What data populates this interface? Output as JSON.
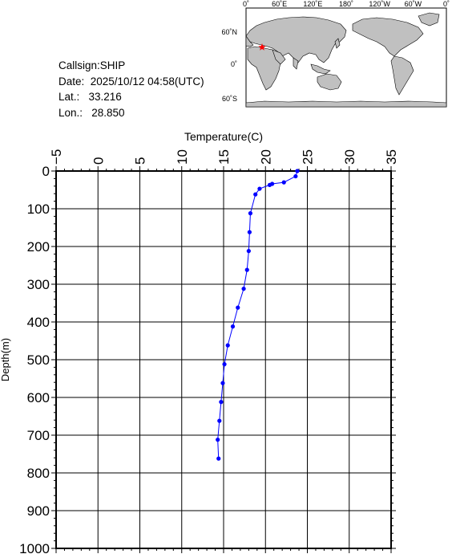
{
  "info": {
    "callsign": "Callsign:SHIP",
    "date": "Date:  2025/10/12 04:58(UTC)",
    "lat": "Lat.:   33.216",
    "lon": "Lon.:   28.850"
  },
  "map": {
    "lon_labels": [
      "0˚",
      "60˚E",
      "120˚E",
      "180˚",
      "120˚W",
      "60˚W",
      "0˚"
    ],
    "lat_labels": [
      "60˚N",
      "0˚",
      "60˚S"
    ],
    "marker_color": "#ff0000",
    "ocean_color": "#ffffff",
    "land_color": "#c0c0c0"
  },
  "chart_data": {
    "type": "line",
    "title": "",
    "xlabel": "Temperature(C)",
    "ylabel": "Depth(m)",
    "x_axis_position": "top",
    "y_inverted": true,
    "xlim": [
      -5,
      35
    ],
    "ylim": [
      0,
      1000
    ],
    "x_ticks": [
      -5,
      0,
      5,
      10,
      15,
      20,
      25,
      30,
      35
    ],
    "y_ticks": [
      0,
      100,
      200,
      300,
      400,
      500,
      600,
      700,
      800,
      900,
      1000
    ],
    "grid": true,
    "line_color": "#0000ff",
    "series": [
      {
        "points": [
          [
            23.8,
            0
          ],
          [
            23.6,
            14
          ],
          [
            22.2,
            30
          ],
          [
            20.8,
            34
          ],
          [
            20.5,
            37
          ],
          [
            19.3,
            47
          ],
          [
            18.8,
            62
          ],
          [
            18.2,
            112
          ],
          [
            18.1,
            162
          ],
          [
            18.0,
            212
          ],
          [
            17.8,
            262
          ],
          [
            17.4,
            312
          ],
          [
            16.7,
            362
          ],
          [
            16.1,
            412
          ],
          [
            15.5,
            462
          ],
          [
            15.1,
            512
          ],
          [
            14.9,
            562
          ],
          [
            14.7,
            612
          ],
          [
            14.5,
            662
          ],
          [
            14.3,
            712
          ],
          [
            14.4,
            762
          ]
        ]
      }
    ]
  }
}
